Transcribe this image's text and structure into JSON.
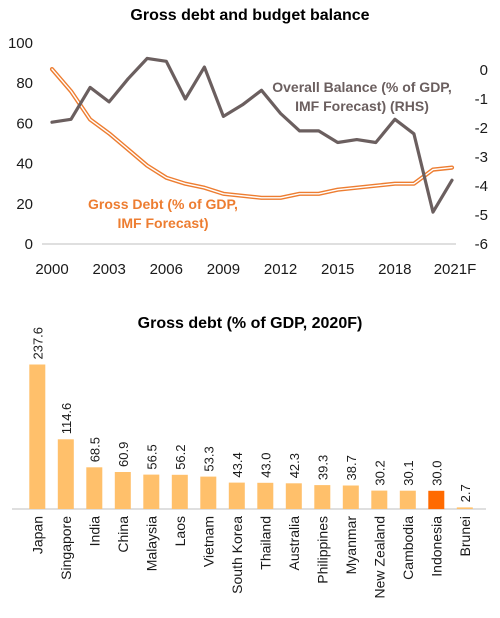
{
  "chart_data": [
    {
      "type": "line",
      "title": "Gross debt and budget balance",
      "x_ticks": [
        "2000",
        "2003",
        "2006",
        "2009",
        "2012",
        "2015",
        "2018",
        "2021F"
      ],
      "y_left_ticks": [
        "0",
        "20",
        "40",
        "60",
        "80",
        "100"
      ],
      "y_right_ticks": [
        "0",
        "-1",
        "-2",
        "-3",
        "-4",
        "-5",
        "-6"
      ],
      "ylim_left": [
        0,
        100
      ],
      "ylim_right": [
        -6,
        1
      ],
      "grid": false,
      "x": [
        2000,
        2001,
        2002,
        2003,
        2004,
        2005,
        2006,
        2007,
        2008,
        2009,
        2010,
        2011,
        2012,
        2013,
        2014,
        2015,
        2016,
        2017,
        2018,
        2019,
        2020,
        2021
      ],
      "series": [
        {
          "name": "Gross Debt (% of GDP, IMF Forecast)",
          "label_lines": [
            "Gross Debt (% of GDP,",
            "IMF Forecast)"
          ],
          "axis": "left",
          "color": "#ED7D31",
          "values": [
            87,
            76,
            62,
            55,
            47,
            39,
            33,
            30,
            28,
            25,
            24,
            23,
            23,
            25,
            25,
            27,
            28,
            29,
            30,
            30,
            37,
            38
          ]
        },
        {
          "name": "Overall Balance (% of GDP, IMF Forecast) (RHS)",
          "label_lines": [
            "Overall Balance (% of GDP,",
            "IMF Forecast) (RHS)"
          ],
          "axis": "right",
          "color": "#6B5F5F",
          "values": [
            -1.8,
            -1.7,
            -0.6,
            -1.1,
            -0.3,
            0.4,
            0.3,
            -1.0,
            0.1,
            -1.6,
            -1.2,
            -0.7,
            -1.5,
            -2.1,
            -2.1,
            -2.5,
            -2.4,
            -2.5,
            -1.7,
            -2.2,
            -4.9,
            -3.8
          ]
        }
      ]
    },
    {
      "type": "bar",
      "title": "Gross debt (% of GDP, 2020F)",
      "categories": [
        "Japan",
        "Singapore",
        "India",
        "China",
        "Malaysia",
        "Laos",
        "Vietnam",
        "South Korea",
        "Thailand",
        "Australia",
        "Philippines",
        "Myanmar",
        "New Zealand",
        "Cambodia",
        "Indonesia",
        "Brunei"
      ],
      "values": [
        237.6,
        114.6,
        68.5,
        60.9,
        56.5,
        56.2,
        53.3,
        43.4,
        43.0,
        42.3,
        39.3,
        38.7,
        30.2,
        30.1,
        30.0,
        2.7
      ],
      "value_labels": [
        "237.6",
        "114.6",
        "68.5",
        "60.9",
        "56.5",
        "56.2",
        "53.3",
        "43.4",
        "43.0",
        "42.3",
        "39.3",
        "38.7",
        "30.2",
        "30.1",
        "30.0",
        "2.7"
      ],
      "colors": {
        "default": "#FFC06B",
        "highlight": "#FF6A00"
      },
      "highlight": "Indonesia",
      "ylim": [
        0,
        240
      ]
    }
  ]
}
